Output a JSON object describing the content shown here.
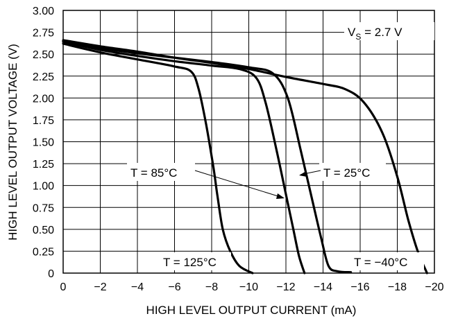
{
  "chart_data": {
    "type": "line",
    "title": "",
    "xlabel": "HIGH LEVEL OUTPUT CURRENT (mA)",
    "ylabel": "HIGH LEVEL OUTPUT VOLTAGE (V)",
    "xlim": [
      0,
      -20
    ],
    "ylim": [
      0,
      3.0
    ],
    "grid": true,
    "x_ticks": [
      "0",
      "−2",
      "−4",
      "−6",
      "−8",
      "−10",
      "−12",
      "−14",
      "−16",
      "−18",
      "−20"
    ],
    "y_ticks": [
      "0",
      "0.25",
      "0.50",
      "0.75",
      "1.00",
      "1.25",
      "1.50",
      "1.75",
      "2.00",
      "2.25",
      "2.50",
      "2.75",
      "3.00"
    ],
    "condition": {
      "prefix": "V",
      "subscript": "S",
      "suffix": " = 2.7 V"
    },
    "series": [
      {
        "name": "T = 125°C",
        "points": [
          [
            0,
            2.62
          ],
          [
            -2,
            2.52
          ],
          [
            -4,
            2.44
          ],
          [
            -6,
            2.36
          ],
          [
            -6.9,
            2.3
          ],
          [
            -7.3,
            2.1
          ],
          [
            -7.7,
            1.7
          ],
          [
            -8.1,
            1.2
          ],
          [
            -8.3,
            0.9
          ],
          [
            -8.6,
            0.5
          ],
          [
            -9.0,
            0.25
          ],
          [
            -9.5,
            0.08
          ],
          [
            -10.2,
            0.0
          ]
        ]
      },
      {
        "name": "T = 85°C",
        "points": [
          [
            0,
            2.64
          ],
          [
            -2,
            2.55
          ],
          [
            -4,
            2.48
          ],
          [
            -6,
            2.42
          ],
          [
            -8,
            2.37
          ],
          [
            -9.5,
            2.33
          ],
          [
            -10.4,
            2.23
          ],
          [
            -10.9,
            1.95
          ],
          [
            -11.5,
            1.4
          ],
          [
            -12.0,
            0.9
          ],
          [
            -12.4,
            0.5
          ],
          [
            -12.7,
            0.2
          ],
          [
            -13.0,
            0.0
          ]
        ]
      },
      {
        "name": "T = 25°C",
        "points": [
          [
            0,
            2.65
          ],
          [
            -2,
            2.57
          ],
          [
            -4,
            2.51
          ],
          [
            -6,
            2.46
          ],
          [
            -8,
            2.41
          ],
          [
            -10,
            2.35
          ],
          [
            -11.3,
            2.28
          ],
          [
            -12.1,
            2.0
          ],
          [
            -12.8,
            1.4
          ],
          [
            -13.4,
            0.85
          ],
          [
            -13.9,
            0.4
          ],
          [
            -14.3,
            0.08
          ],
          [
            -14.8,
            0.02
          ],
          [
            -15.5,
            0.01
          ]
        ]
      },
      {
        "name": "T = −40°C",
        "points": [
          [
            0,
            2.66
          ],
          [
            -2,
            2.59
          ],
          [
            -4,
            2.53
          ],
          [
            -6,
            2.46
          ],
          [
            -8,
            2.4
          ],
          [
            -10,
            2.33
          ],
          [
            -12,
            2.24
          ],
          [
            -14,
            2.16
          ],
          [
            -15.2,
            2.1
          ],
          [
            -16.2,
            1.95
          ],
          [
            -17.2,
            1.6
          ],
          [
            -18.0,
            1.1
          ],
          [
            -18.6,
            0.6
          ],
          [
            -19.1,
            0.25
          ],
          [
            -19.6,
            0.0
          ]
        ]
      }
    ],
    "annotations": [
      "V_S = 2.7 V",
      "T = 85°C",
      "T = 25°C",
      "T = 125°C",
      "T = −40°C"
    ]
  },
  "labels": {
    "t85": "T = 85°C",
    "t25": "T = 25°C",
    "t125": "T = 125°C",
    "tm40": "T = −40°C"
  }
}
